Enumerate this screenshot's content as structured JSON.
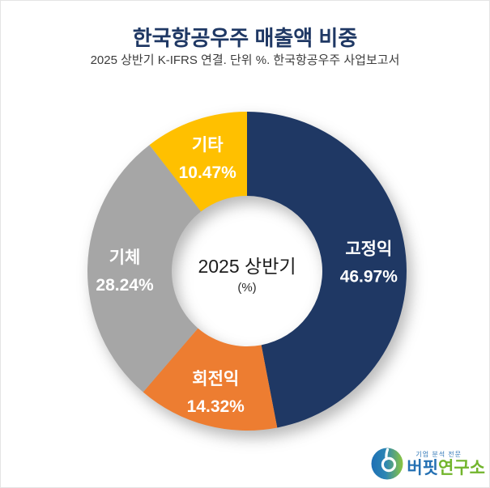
{
  "header": {
    "title": "한국항공우주 매출액 비중",
    "subtitle": "2025 상반기 K-IFRS 연결. 단위 %. 한국항공우주 사업보고서"
  },
  "chart_data": {
    "type": "pie",
    "donut": true,
    "title": "한국항공우주 매출액 비중",
    "subtitle": "2025 상반기 K-IFRS 연결. 단위 %. 한국항공우주 사업보고서",
    "unit": "%",
    "start_angle_deg": 0,
    "direction": "clockwise",
    "legend_position": "none",
    "inner_radius_ratio": 0.47,
    "center_label": "2025 상반기",
    "center_sublabel": "(%)",
    "segments": [
      {
        "label": "고정익",
        "value": 46.97,
        "display": "46.97%",
        "color": "#1F3864"
      },
      {
        "label": "회전익",
        "value": 14.32,
        "display": "14.32%",
        "color": "#ED7D31"
      },
      {
        "label": "기체",
        "value": 28.24,
        "display": "28.24%",
        "color": "#A6A6A6"
      },
      {
        "label": "기타",
        "value": 10.47,
        "display": "10.47%",
        "color": "#FFC000"
      }
    ]
  },
  "center": {
    "line1": "2025 상반기",
    "line2": "(%)"
  },
  "logo": {
    "tagline": "기업 분석 전문",
    "name_blue": "버핏",
    "name_green": "연구소",
    "colors": {
      "blue": "#2470B3",
      "green": "#72B52C"
    }
  },
  "colors": {
    "title_navy": "#1F3864",
    "segment_navy": "#1F3864",
    "segment_orange": "#ED7D31",
    "segment_gray": "#A6A6A6",
    "segment_yellow": "#FFC000"
  }
}
